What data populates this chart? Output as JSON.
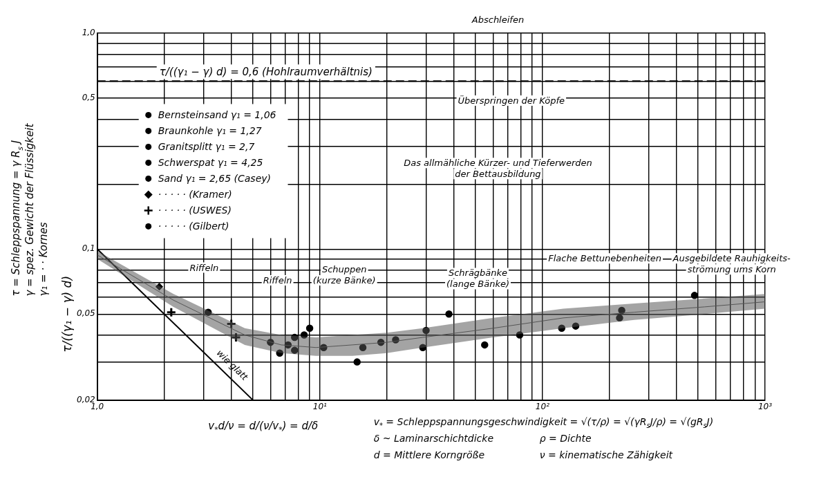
{
  "chart_data": {
    "type": "scatter",
    "xlabel": "v$_{*}$d/ν = d/(ν/v$_{*}$) = d/δ",
    "ylabel": "τ/((γ₁ − γ) d)",
    "log": "xy",
    "xlim": [
      1,
      1000
    ],
    "ylim": [
      0.02,
      1
    ],
    "xticks": [
      {
        "value": 1,
        "label": "1,0"
      },
      {
        "value": 2,
        "label": null
      },
      {
        "value": 3,
        "label": null
      },
      {
        "value": 4,
        "label": null
      },
      {
        "value": 5,
        "label": null
      },
      {
        "value": 6,
        "label": null
      },
      {
        "value": 7,
        "label": null
      },
      {
        "value": 8,
        "label": null
      },
      {
        "value": 9,
        "label": null
      },
      {
        "value": 10,
        "label": "10¹"
      },
      {
        "value": 20,
        "label": null
      },
      {
        "value": 30,
        "label": null
      },
      {
        "value": 40,
        "label": null
      },
      {
        "value": 50,
        "label": null
      },
      {
        "value": 60,
        "label": null
      },
      {
        "value": 70,
        "label": null
      },
      {
        "value": 80,
        "label": null
      },
      {
        "value": 90,
        "label": null
      },
      {
        "value": 100,
        "label": "10²"
      },
      {
        "value": 200,
        "label": null
      },
      {
        "value": 300,
        "label": null
      },
      {
        "value": 400,
        "label": null
      },
      {
        "value": 500,
        "label": null
      },
      {
        "value": 600,
        "label": null
      },
      {
        "value": 700,
        "label": null
      },
      {
        "value": 800,
        "label": null
      },
      {
        "value": 900,
        "label": null
      },
      {
        "value": 1000,
        "label": "10³"
      }
    ],
    "yticks": [
      {
        "value": 0.02,
        "label": "0,02"
      },
      {
        "value": 0.03,
        "label": null
      },
      {
        "value": 0.04,
        "label": null
      },
      {
        "value": 0.05,
        "label": "0,05"
      },
      {
        "value": 0.06,
        "label": null
      },
      {
        "value": 0.07,
        "label": null
      },
      {
        "value": 0.08,
        "label": null
      },
      {
        "value": 0.09,
        "label": null
      },
      {
        "value": 0.1,
        "label": "0,1"
      },
      {
        "value": 0.2,
        "label": null
      },
      {
        "value": 0.3,
        "label": null
      },
      {
        "value": 0.4,
        "label": null
      },
      {
        "value": 0.5,
        "label": "0,5"
      },
      {
        "value": 0.6,
        "label": null
      },
      {
        "value": 0.7,
        "label": null
      },
      {
        "value": 0.8,
        "label": null
      },
      {
        "value": 0.9,
        "label": null
      },
      {
        "value": 1,
        "label": "1,0"
      }
    ],
    "grid": true,
    "legend": "top left",
    "series": [
      {
        "type": "line",
        "color": "#555555",
        "marker": "none",
        "x": [
          1,
          2.2,
          4.6,
          6.7,
          9.6,
          14,
          20,
          29,
          60,
          124,
          258,
          535,
          1000
        ],
        "values": [
          0.094,
          0.058,
          0.04,
          0.036,
          0.035,
          0.036,
          0.037,
          0.039,
          0.043,
          0.048,
          0.051,
          0.054,
          0.057
        ],
        "lower": [
          0.09,
          0.054,
          0.036,
          0.033,
          0.032,
          0.032,
          0.033,
          0.035,
          0.039,
          0.043,
          0.047,
          0.05,
          0.053
        ],
        "upper": [
          0.098,
          0.062,
          0.043,
          0.04,
          0.039,
          0.04,
          0.041,
          0.043,
          0.048,
          0.053,
          0.056,
          0.059,
          0.062
        ]
      },
      {
        "type": "line",
        "name": "wie glatt",
        "color": "#000000",
        "x": [
          1,
          5
        ],
        "values": [
          0.1,
          0.02
        ],
        "marker": "none"
      },
      {
        "name": "Bernsteinsand γ₁ = 1,06",
        "color": "#000000",
        "marker": "circle",
        "x": [
          3.15,
          6.6,
          7.7,
          8.5,
          9,
          29,
          30,
          55,
          79,
          122,
          222
        ],
        "values": [
          0.051,
          0.033,
          0.039,
          0.04,
          0.043,
          0.035,
          0.042,
          0.036,
          0.04,
          0.043,
          0.048
        ]
      },
      {
        "name": "Braunkohle γ₁ = 1,27",
        "color": "#000000",
        "marker": "circle",
        "x": [
          10.4,
          14.7,
          18.8,
          38,
          141,
          227
        ],
        "values": [
          0.035,
          0.03,
          0.037,
          0.05,
          0.044,
          0.052
        ]
      },
      {
        "name": "Granitsplitt γ₁ = 2,7",
        "color": "#000000",
        "marker": "circle",
        "x": [
          6,
          15.6
        ],
        "values": [
          0.037,
          0.035
        ]
      },
      {
        "name": "Schwerspat γ₁ = 4,25",
        "color": "#000000",
        "marker": "circle",
        "x": [
          7.7,
          21.9
        ],
        "values": [
          0.034,
          0.038
        ]
      },
      {
        "name": "Sand γ₁ = 2,65 (Casey)",
        "color": "#000000",
        "marker": "circle",
        "x": [
          7.2
        ],
        "values": [
          0.036
        ]
      },
      {
        "name": "· · · · · (Kramer)",
        "color": "#000000",
        "marker": "diamond",
        "x": [
          1.9
        ],
        "values": [
          0.067
        ]
      },
      {
        "name": "· · · · · (USWES)",
        "color": "#000000",
        "marker": "cross",
        "x": [
          2.15,
          4,
          4.2
        ],
        "values": [
          0.051,
          0.045,
          0.039
        ]
      },
      {
        "name": "· · · · · (Gilbert)",
        "color": "#000000",
        "marker": "circle",
        "x": [
          482
        ],
        "values": [
          0.061
        ]
      }
    ],
    "ref_lines": [
      {
        "axis": "y",
        "value": 0.6,
        "label": "τ/((γ₁ − γ) d) = 0,6 (Hohlraumverhältnis)",
        "line_style": "dashed",
        "color": "#000000"
      }
    ],
    "annotations": [
      "τ = Schleppspannung = γ R$_{s}$ J",
      "γ = spez. Gewicht der Flüssigkeit",
      "γ₁ = · · Kornes",
      "v$_{*}$ = Schleppspannungsgeschwindigkeit = √(τ/ρ) = √(γR$_{s}$J/ρ) = √(gR$_{s}$J)",
      "δ ~ Laminarschichtdicke",
      "ρ = Dichte",
      "d = Mittlere Korngröße",
      "ν = kinematische Zähigkeit",
      "Abschleifen",
      "Überspringen der Köpfe",
      "Das allmähliche Kürzer- und Tieferwerden\nder Bettausbildung",
      "Riffeln",
      "Riffeln",
      "Schuppen\n(kurze Bänke)",
      "Schrägbänke\n(lange Bänke)",
      "Flache Bettunebenheiten",
      "Ausgebildete Rauhigkeits-\nströmung ums Korn"
    ]
  }
}
